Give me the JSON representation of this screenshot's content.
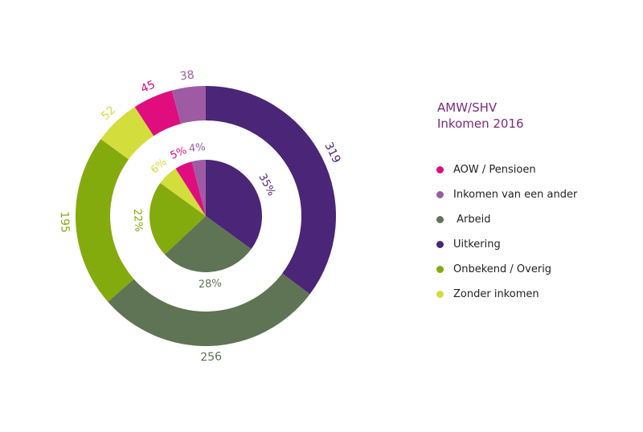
{
  "chart_data": {
    "type": "pie",
    "title": "AMW/SHV",
    "subtitle": "Inkomen 2016",
    "categories": [
      "Uitkering",
      "Arbeid",
      "Onbekend / Overig",
      "Zonder inkomen",
      "AOW / Pensioen",
      "Inkomen van een ander"
    ],
    "series": [
      {
        "values": [
          319,
          256,
          195,
          52,
          45,
          38
        ]
      },
      {
        "values": [
          35,
          28,
          22,
          6,
          5,
          4
        ]
      }
    ],
    "outer_labels": [
      "319",
      "256",
      "195",
      "52",
      "45",
      "38"
    ],
    "inner_labels": [
      "35%",
      "28%",
      "22%",
      "6%",
      "5%",
      "4%"
    ],
    "colors": [
      "#4b2577",
      "#5e7454",
      "#84ab0d",
      "#d3dd3c",
      "#df0d7e",
      "#9e5ba4"
    ]
  },
  "legend": {
    "items": [
      {
        "label": "AOW / Pensioen",
        "color": "#df0d7e"
      },
      {
        "label": "Inkomen van een ander",
        "color": "#9e5ba4"
      },
      {
        "label": " Arbeid",
        "color": "#5e7454"
      },
      {
        "label": "Uitkering",
        "color": "#4b2577"
      },
      {
        "label": "Onbekend / Overig",
        "color": "#84ab0d"
      },
      {
        "label": "Zonder inkomen",
        "color": "#d3dd3c"
      }
    ]
  }
}
